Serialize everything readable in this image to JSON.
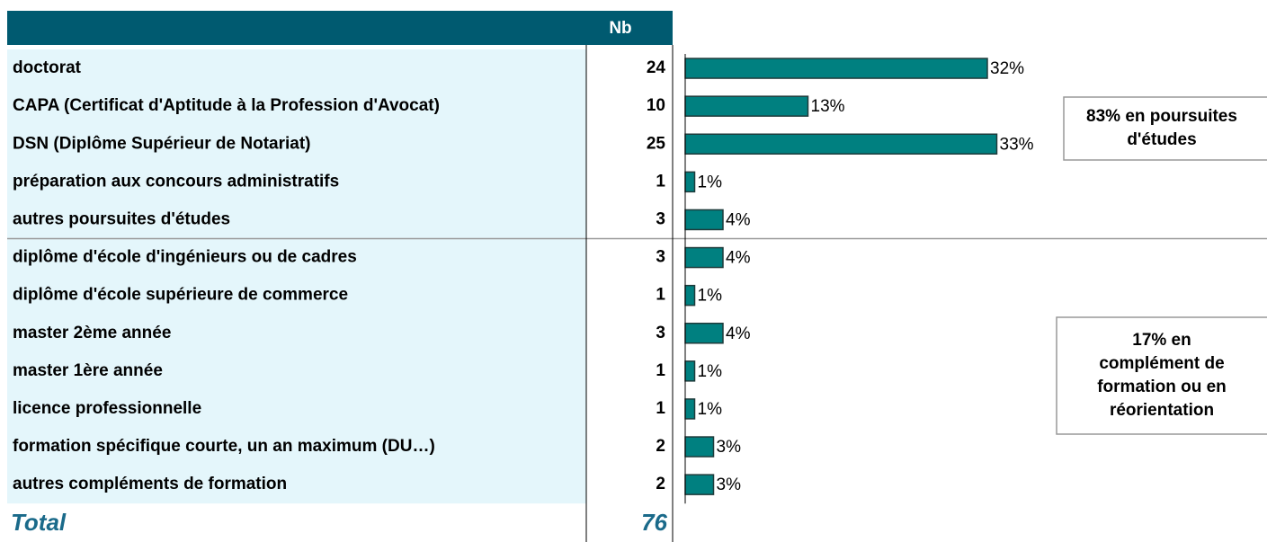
{
  "table": {
    "header": "Nb",
    "rows": [
      {
        "label": "doctorat",
        "nb": 24,
        "pct": 32,
        "pct_label": "32%"
      },
      {
        "label": "CAPA (Certificat d'Aptitude à la Profession d'Avocat)",
        "nb": 10,
        "pct": 13,
        "pct_label": "13%"
      },
      {
        "label": "DSN (Diplôme Supérieur de Notariat)",
        "nb": 25,
        "pct": 33,
        "pct_label": "33%"
      },
      {
        "label": "préparation aux concours administratifs",
        "nb": 1,
        "pct": 1,
        "pct_label": "1%"
      },
      {
        "label": "autres poursuites d'études",
        "nb": 3,
        "pct": 4,
        "pct_label": "4%"
      },
      {
        "label": "diplôme d'école d'ingénieurs ou de cadres",
        "nb": 3,
        "pct": 4,
        "pct_label": "4%"
      },
      {
        "label": "diplôme d'école supérieure de commerce",
        "nb": 1,
        "pct": 1,
        "pct_label": "1%"
      },
      {
        "label": "master 2ème année",
        "nb": 3,
        "pct": 4,
        "pct_label": "4%"
      },
      {
        "label": "master 1ère année",
        "nb": 1,
        "pct": 1,
        "pct_label": "1%"
      },
      {
        "label": "licence professionnelle",
        "nb": 1,
        "pct": 1,
        "pct_label": "1%"
      },
      {
        "label": "formation spécifique courte, un an maximum (DU…)",
        "nb": 2,
        "pct": 3,
        "pct_label": "3%"
      },
      {
        "label": "autres compléments de formation",
        "nb": 2,
        "pct": 3,
        "pct_label": "3%"
      }
    ],
    "total": {
      "label": "Total",
      "nb": 76
    }
  },
  "bar_color": "#008080",
  "notes": [
    {
      "lines": [
        "83% en poursuites",
        "d'études"
      ]
    },
    {
      "lines": [
        "17% en",
        "complément de",
        "formation ou en",
        "réorientation"
      ]
    }
  ]
}
